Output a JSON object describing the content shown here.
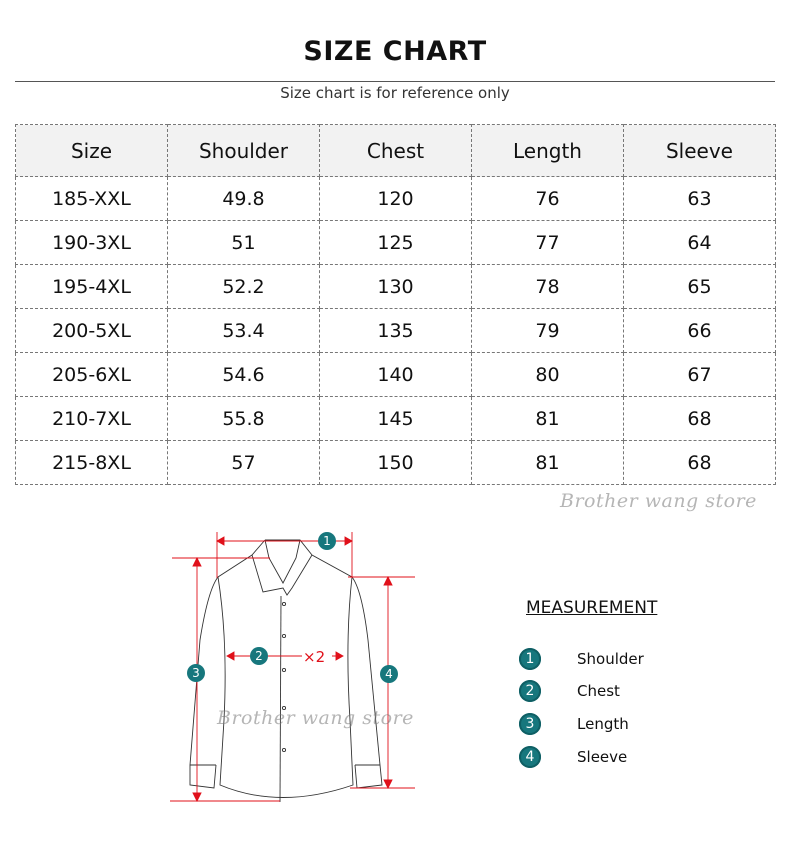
{
  "title": "SIZE CHART",
  "subtitle": "Size chart is for reference only",
  "table": {
    "headers": [
      "Size",
      "Shoulder",
      "Chest",
      "Length",
      "Sleeve"
    ],
    "rows": [
      [
        "185-XXL",
        "49.8",
        "120",
        "76",
        "63"
      ],
      [
        "190-3XL",
        "51",
        "125",
        "77",
        "64"
      ],
      [
        "195-4XL",
        "52.2",
        "130",
        "78",
        "65"
      ],
      [
        "200-5XL",
        "53.4",
        "135",
        "79",
        "66"
      ],
      [
        "205-6XL",
        "54.6",
        "140",
        "80",
        "67"
      ],
      [
        "210-7XL",
        "55.8",
        "145",
        "81",
        "68"
      ],
      [
        "215-8XL",
        "57",
        "150",
        "81",
        "68"
      ]
    ]
  },
  "watermark": "Brother wang store",
  "diagram": {
    "markers": [
      "1",
      "2",
      "3",
      "4"
    ],
    "chest_multiplier": "×2"
  },
  "legend": {
    "title": "MEASUREMENT",
    "items": [
      {
        "num": "1",
        "label": "Shoulder"
      },
      {
        "num": "2",
        "label": "Chest"
      },
      {
        "num": "3",
        "label": "Length"
      },
      {
        "num": "4",
        "label": "Sleeve"
      }
    ]
  },
  "colors": {
    "accent": "#17777d",
    "arrow": "#e0101a",
    "header_bg": "#f2f2f2"
  }
}
